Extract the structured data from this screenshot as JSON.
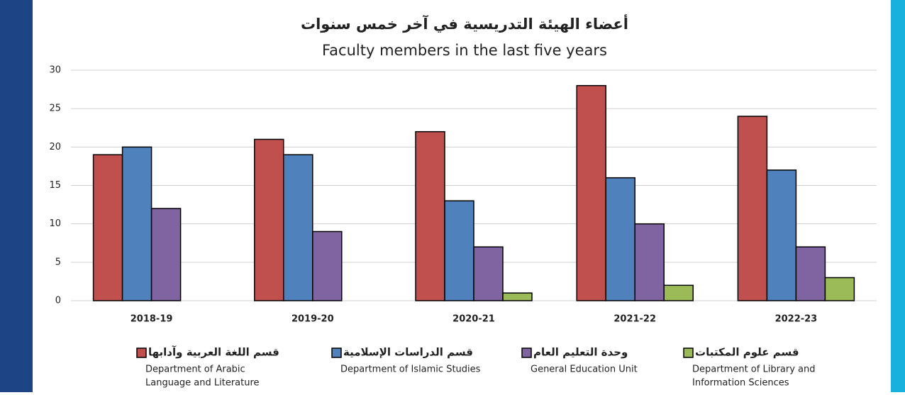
{
  "chart_data": {
    "type": "bar",
    "title": "أعضاء الهيئة التدريسية في آخر خمس سنوات",
    "subtitle": "Faculty members in the last five years",
    "categories": [
      "2018-19",
      "2019-20",
      "2020-21",
      "2021-22",
      "2022-23"
    ],
    "series": [
      {
        "name": "قسم اللغة العربية وآدابها",
        "name_en": [
          "Department of Arabic",
          "Language and Literature"
        ],
        "color": "#c0504d",
        "values": [
          19,
          21,
          22,
          28,
          24
        ]
      },
      {
        "name": "قسم الدراسات الإسلامية",
        "name_en": [
          "Department of Islamic Studies"
        ],
        "color": "#4f81bd",
        "values": [
          20,
          19,
          13,
          16,
          17
        ]
      },
      {
        "name": "وحدة التعليم العام",
        "name_en": [
          "General Education Unit"
        ],
        "color": "#8064a2",
        "values": [
          12,
          9,
          7,
          10,
          7
        ]
      },
      {
        "name": "قسم علوم المكتبات",
        "name_en": [
          "Department of Library and",
          "Information Sciences"
        ],
        "color": "#9bbb59",
        "values": [
          null,
          null,
          1,
          2,
          3
        ]
      }
    ],
    "ylim": [
      0,
      30
    ],
    "yticks": [
      0,
      5,
      10,
      15,
      20,
      25,
      30
    ],
    "grid": true,
    "legend": "bottom"
  }
}
